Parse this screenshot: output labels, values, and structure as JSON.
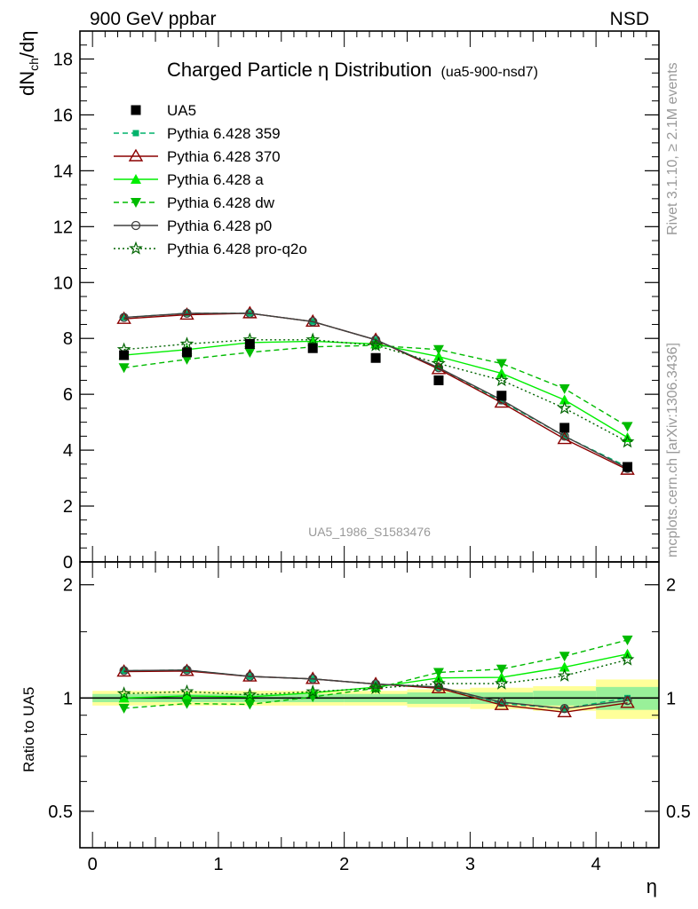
{
  "header": {
    "left": "900 GeV ppbar",
    "right": "NSD"
  },
  "side_labels": {
    "rivet": "Rivet 3.1.10, ≥ 2.1M events",
    "mcplots": "mcplots.cern.ch [arXiv:1306.3436]"
  },
  "chart_data": {
    "type": "line",
    "title": "Charged Particle η Distribution",
    "title_suffix": "(ua5-900-nsd7)",
    "watermark": "UA5_1986_S1583476",
    "xlabel": "η",
    "ylabel": "dN_ch/dη",
    "ylabel_parts": {
      "main": "dN",
      "sub": "ch",
      "tail": "/dη"
    },
    "ratio_ylabel": "Ratio to UA5",
    "xlim": [
      -0.1,
      4.5
    ],
    "ylim": [
      0,
      19
    ],
    "ratio_ylim": [
      0.4,
      2.3
    ],
    "ratio_scale": "log",
    "x_ticks": [
      "0",
      "1",
      "2",
      "3",
      "4"
    ],
    "y_ticks": [
      "0",
      "2",
      "4",
      "6",
      "8",
      "10",
      "12",
      "14",
      "16",
      "18"
    ],
    "ratio_ticks": [
      "0.5",
      "1",
      "2"
    ],
    "legend_position": "top-left",
    "x": [
      0.25,
      0.75,
      1.25,
      1.75,
      2.25,
      2.75,
      3.25,
      3.75,
      4.25
    ],
    "data": {
      "name": "UA5",
      "color": "#000000",
      "values": [
        7.4,
        7.5,
        7.8,
        7.65,
        7.3,
        6.5,
        5.95,
        4.8,
        3.4
      ],
      "band_inner": [
        0.025,
        0.025,
        0.025,
        0.025,
        0.025,
        0.035,
        0.035,
        0.045,
        0.07
      ],
      "band_outer": [
        0.045,
        0.045,
        0.045,
        0.045,
        0.045,
        0.055,
        0.065,
        0.075,
        0.12
      ]
    },
    "series": [
      {
        "name": "Pythia 6.428 359",
        "color": "#00b36b",
        "dash": "6,4",
        "marker": "square",
        "values": [
          8.75,
          8.9,
          8.9,
          8.6,
          7.95,
          6.95,
          5.75,
          4.5,
          3.4
        ]
      },
      {
        "name": "Pythia 6.428 370",
        "color": "#8b0000",
        "dash": "",
        "marker": "triangle-open",
        "values": [
          8.7,
          8.85,
          8.9,
          8.6,
          7.95,
          6.9,
          5.7,
          4.4,
          3.3
        ]
      },
      {
        "name": "Pythia 6.428 a",
        "color": "#00ee00",
        "dash": "",
        "marker": "triangle",
        "values": [
          7.4,
          7.6,
          7.85,
          7.9,
          7.8,
          7.35,
          6.75,
          5.8,
          4.45
        ]
      },
      {
        "name": "Pythia 6.428 dw",
        "color": "#00bb00",
        "dash": "6,4",
        "marker": "triangle-down",
        "values": [
          6.95,
          7.25,
          7.5,
          7.7,
          7.75,
          7.6,
          7.1,
          6.2,
          4.85
        ]
      },
      {
        "name": "Pythia 6.428 p0",
        "color": "#404040",
        "dash": "",
        "marker": "circle-open",
        "values": [
          8.75,
          8.9,
          8.9,
          8.6,
          7.95,
          6.95,
          5.8,
          4.5,
          3.35
        ]
      },
      {
        "name": "Pythia 6.428 pro-q2o",
        "color": "#006400",
        "dash": "2,3",
        "marker": "star",
        "values": [
          7.6,
          7.8,
          7.95,
          7.95,
          7.75,
          7.1,
          6.5,
          5.5,
          4.3
        ]
      }
    ]
  }
}
